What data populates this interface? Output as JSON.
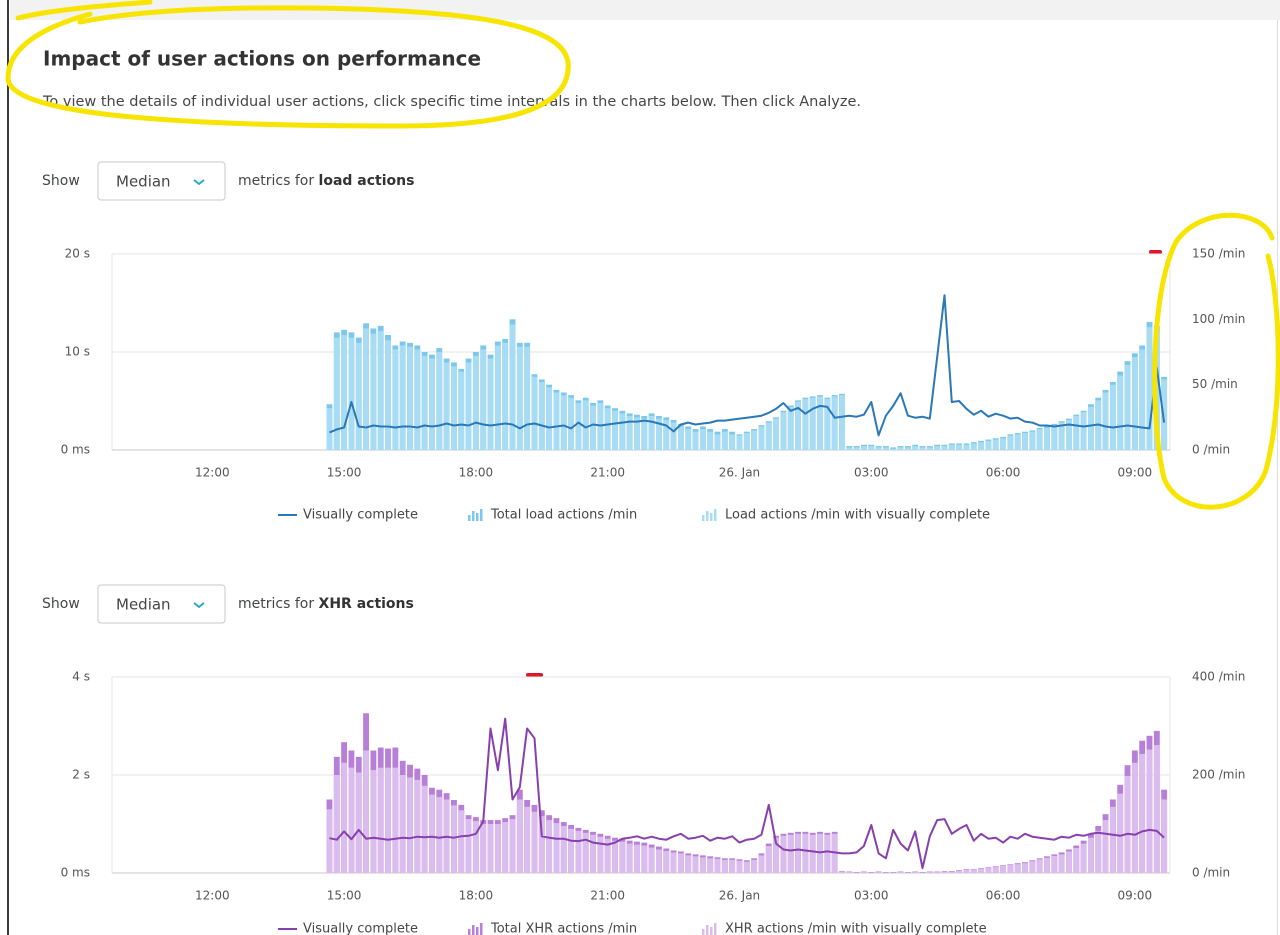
{
  "title": "Impact of user actions on performance",
  "description": "To view the details of individual user actions, click specific time intervals in the charts below. Then click Analyze.",
  "sections": [
    {
      "show_label": "Show",
      "selector": "Median",
      "metrics_label": "metrics for",
      "action_type": "load actions"
    },
    {
      "show_label": "Show",
      "selector": "Median",
      "metrics_label": "metrics for",
      "action_type": "XHR actions"
    }
  ],
  "chart_data": [
    {
      "type": "combo",
      "x": [
        880,
        890,
        900,
        910,
        920,
        930,
        940,
        950,
        960,
        970,
        980,
        990,
        1000,
        1010,
        1020,
        1030,
        1040,
        1050,
        1060,
        1070,
        1080,
        1090,
        1100,
        1110,
        1120,
        1130,
        1140,
        1150,
        1160,
        1170,
        1180,
        1190,
        1200,
        1210,
        1220,
        1230,
        1240,
        1250,
        1260,
        1270,
        1280,
        1290,
        1300,
        1310,
        1320,
        1330,
        1340,
        1350,
        1360,
        1370,
        1380,
        1390,
        1400,
        1410,
        1420,
        1430,
        1440,
        1450,
        1460,
        1470,
        1480,
        1490,
        1500,
        1510,
        1520,
        1530,
        1540,
        1550,
        1560,
        1570,
        1580,
        1590,
        1600,
        1610,
        1620,
        1630,
        1640,
        1650,
        1660,
        1670,
        1680,
        1690,
        1700,
        1710,
        1720,
        1730,
        1740,
        1750,
        1760,
        1770,
        1780,
        1790,
        1800,
        1810,
        1820,
        1830,
        1840,
        1850,
        1860,
        1870,
        1880,
        1890,
        1900,
        1910,
        1920,
        1930,
        1940,
        1950,
        1960,
        1970,
        1980,
        1990,
        2000,
        2010,
        2020
      ],
      "xlim": [
        583,
        2028
      ],
      "xticks": [
        {
          "value": 720,
          "label": "12:00"
        },
        {
          "value": 900,
          "label": "15:00"
        },
        {
          "value": 1080,
          "label": "18:00"
        },
        {
          "value": 1260,
          "label": "21:00"
        },
        {
          "value": 1440,
          "label": "26. Jan"
        },
        {
          "value": 1620,
          "label": "03:00"
        },
        {
          "value": 1800,
          "label": "06:00"
        },
        {
          "value": 1980,
          "label": "09:00"
        }
      ],
      "ylim": [
        0,
        20
      ],
      "yticks": [
        {
          "value": 0,
          "label": "0 ms"
        },
        {
          "value": 10,
          "label": "10 s"
        },
        {
          "value": 20,
          "label": "20 s"
        }
      ],
      "y2lim": [
        0,
        150
      ],
      "y2ticks": [
        {
          "value": 0,
          "label": "0 /min"
        },
        {
          "value": 50,
          "label": "50 /min"
        },
        {
          "value": 100,
          "label": "100 /min"
        },
        {
          "value": 150,
          "label": "150 /min"
        }
      ],
      "grid": true,
      "series": [
        {
          "name": "Total load actions /min",
          "kind": "bar",
          "axis": "y2",
          "color": "#7cc8ec",
          "values": [
            35,
            90,
            92,
            90,
            86,
            97,
            93,
            95,
            88,
            80,
            83,
            82,
            80,
            75,
            73,
            78,
            70,
            67,
            62,
            70,
            75,
            80,
            73,
            83,
            85,
            100,
            82,
            82,
            58,
            54,
            50,
            46,
            44,
            42,
            38,
            40,
            36,
            38,
            34,
            32,
            30,
            28,
            27,
            26,
            28,
            26,
            25,
            23,
            20,
            18,
            16,
            18,
            16,
            14,
            16,
            14,
            12,
            14,
            16,
            19,
            22,
            25,
            30,
            34,
            38,
            40,
            41,
            42,
            40,
            42,
            43,
            3,
            3,
            4,
            4,
            3,
            3,
            2,
            3,
            3,
            4,
            3,
            3,
            4,
            4,
            5,
            5,
            5,
            6,
            7,
            8,
            9,
            10,
            12,
            13,
            14,
            15,
            17,
            18,
            20,
            22,
            24,
            27,
            30,
            35,
            40,
            46,
            52,
            60,
            68,
            74,
            80,
            98,
            95,
            56
          ]
        },
        {
          "name": "Load actions /min with visually complete",
          "kind": "bar",
          "axis": "y2",
          "color": "#a8dcf4",
          "values": [
            32,
            86,
            88,
            86,
            82,
            93,
            89,
            91,
            84,
            77,
            80,
            79,
            77,
            72,
            70,
            75,
            67,
            64,
            60,
            67,
            72,
            77,
            70,
            80,
            82,
            96,
            79,
            79,
            56,
            52,
            48,
            44,
            42,
            40,
            36,
            38,
            34,
            36,
            32,
            30,
            28,
            26,
            25,
            24,
            26,
            24,
            23,
            21,
            18,
            16,
            14,
            16,
            14,
            12,
            14,
            12,
            11,
            13,
            15,
            18,
            21,
            24,
            29,
            33,
            37,
            39,
            40,
            41,
            39,
            41,
            42,
            2,
            2,
            3,
            3,
            2,
            2,
            1,
            2,
            2,
            3,
            2,
            2,
            3,
            3,
            4,
            4,
            4,
            5,
            6,
            7,
            8,
            9,
            11,
            12,
            13,
            14,
            16,
            17,
            19,
            21,
            23,
            26,
            29,
            33,
            38,
            44,
            50,
            57,
            65,
            71,
            77,
            94,
            91,
            54
          ]
        },
        {
          "name": "Visually complete",
          "kind": "line",
          "color": "#2a78b8",
          "values": [
            1.8,
            2.1,
            2.3,
            4.9,
            2.4,
            2.3,
            2.5,
            2.4,
            2.4,
            2.3,
            2.4,
            2.4,
            2.3,
            2.5,
            2.4,
            2.5,
            2.7,
            2.5,
            2.6,
            2.5,
            2.8,
            2.6,
            2.5,
            2.6,
            2.7,
            2.6,
            2.2,
            2.6,
            2.7,
            2.5,
            2.3,
            2.4,
            2.5,
            2.2,
            2.8,
            2.3,
            2.6,
            2.5,
            2.6,
            2.7,
            2.8,
            2.9,
            2.9,
            3.0,
            2.9,
            2.7,
            2.5,
            1.9,
            2.6,
            2.8,
            2.6,
            2.7,
            2.8,
            3.0,
            3.0,
            3.1,
            3.2,
            3.3,
            3.4,
            3.5,
            3.8,
            4.2,
            4.8,
            4.0,
            4.3,
            3.7,
            4.2,
            4.5,
            4.4,
            3.3,
            3.4,
            3.5,
            3.4,
            3.6,
            4.9,
            1.5,
            3.5,
            4.5,
            5.8,
            3.5,
            3.3,
            3.4,
            3.2,
            9.5,
            15.8,
            4.9,
            5.0,
            4.2,
            3.6,
            4.0,
            3.4,
            3.7,
            3.5,
            3.2,
            3.3,
            2.9,
            2.8,
            2.5,
            2.5,
            2.4,
            2.5,
            2.6,
            2.5,
            2.4,
            2.5,
            2.6,
            2.4,
            2.3,
            2.4,
            2.5,
            2.4,
            2.3,
            2.2,
            8.4,
            2.8
          ]
        }
      ]
    },
    {
      "type": "combo",
      "x": [
        880,
        890,
        900,
        910,
        920,
        930,
        940,
        950,
        960,
        970,
        980,
        990,
        1000,
        1010,
        1020,
        1030,
        1040,
        1050,
        1060,
        1070,
        1080,
        1090,
        1100,
        1110,
        1120,
        1130,
        1140,
        1150,
        1160,
        1170,
        1180,
        1190,
        1200,
        1210,
        1220,
        1230,
        1240,
        1250,
        1260,
        1270,
        1280,
        1290,
        1300,
        1310,
        1320,
        1330,
        1340,
        1350,
        1360,
        1370,
        1380,
        1390,
        1400,
        1410,
        1420,
        1430,
        1440,
        1450,
        1460,
        1470,
        1480,
        1490,
        1500,
        1510,
        1520,
        1530,
        1540,
        1550,
        1560,
        1570,
        1580,
        1590,
        1600,
        1610,
        1620,
        1630,
        1640,
        1650,
        1660,
        1670,
        1680,
        1690,
        1700,
        1710,
        1720,
        1730,
        1740,
        1750,
        1760,
        1770,
        1780,
        1790,
        1800,
        1810,
        1820,
        1830,
        1840,
        1850,
        1860,
        1870,
        1880,
        1890,
        1900,
        1910,
        1920,
        1930,
        1940,
        1950,
        1960,
        1970,
        1980,
        1990,
        2000,
        2010,
        2020
      ],
      "xlim": [
        583,
        2028
      ],
      "xticks": [
        {
          "value": 720,
          "label": "12:00"
        },
        {
          "value": 900,
          "label": "15:00"
        },
        {
          "value": 1080,
          "label": "18:00"
        },
        {
          "value": 1260,
          "label": "21:00"
        },
        {
          "value": 1440,
          "label": "26. Jan"
        },
        {
          "value": 1620,
          "label": "03:00"
        },
        {
          "value": 1800,
          "label": "06:00"
        },
        {
          "value": 1980,
          "label": "09:00"
        }
      ],
      "ylim": [
        0,
        4
      ],
      "yticks": [
        {
          "value": 0,
          "label": "0 ms"
        },
        {
          "value": 2,
          "label": "2 s"
        },
        {
          "value": 4,
          "label": "4 s"
        }
      ],
      "y2lim": [
        0,
        400
      ],
      "y2ticks": [
        {
          "value": 0,
          "label": "0 /min"
        },
        {
          "value": 200,
          "label": "200 /min"
        },
        {
          "value": 400,
          "label": "400 /min"
        }
      ],
      "grid": true,
      "series": [
        {
          "name": "Total XHR actions /min",
          "kind": "bar",
          "axis": "y2",
          "color": "#b87fd8",
          "values": [
            150,
            237,
            267,
            250,
            237,
            326,
            250,
            256,
            254,
            256,
            229,
            221,
            213,
            200,
            174,
            170,
            163,
            149,
            139,
            118,
            114,
            108,
            108,
            108,
            112,
            118,
            170,
            149,
            139,
            128,
            118,
            112,
            104,
            98,
            92,
            88,
            84,
            80,
            76,
            72,
            70,
            66,
            64,
            62,
            58,
            54,
            50,
            46,
            44,
            40,
            38,
            36,
            34,
            32,
            30,
            30,
            28,
            26,
            30,
            40,
            60,
            76,
            80,
            82,
            84,
            84,
            82,
            84,
            82,
            84,
            4,
            3,
            2,
            3,
            2,
            3,
            2,
            2,
            3,
            2,
            3,
            2,
            3,
            3,
            4,
            4,
            6,
            8,
            8,
            10,
            12,
            14,
            16,
            18,
            20,
            22,
            26,
            30,
            34,
            38,
            42,
            48,
            56,
            66,
            80,
            96,
            120,
            150,
            180,
            220,
            250,
            270,
            280,
            290,
            170
          ]
        },
        {
          "name": "XHR actions /min with visually complete",
          "kind": "bar",
          "axis": "y2",
          "color": "#dbbcee",
          "values": [
            130,
            200,
            225,
            215,
            205,
            250,
            210,
            215,
            215,
            215,
            200,
            195,
            190,
            178,
            160,
            155,
            150,
            138,
            128,
            110,
            106,
            100,
            100,
            100,
            104,
            110,
            150,
            135,
            125,
            116,
            108,
            102,
            96,
            90,
            86,
            82,
            78,
            74,
            70,
            66,
            64,
            60,
            58,
            56,
            52,
            48,
            45,
            42,
            40,
            36,
            34,
            32,
            30,
            29,
            27,
            27,
            25,
            23,
            27,
            36,
            55,
            72,
            76,
            78,
            80,
            80,
            78,
            80,
            78,
            80,
            3,
            2,
            1,
            2,
            1,
            2,
            1,
            1,
            2,
            1,
            2,
            1,
            2,
            2,
            3,
            3,
            5,
            7,
            7,
            9,
            11,
            13,
            15,
            17,
            18,
            20,
            24,
            28,
            31,
            35,
            38,
            44,
            51,
            60,
            72,
            86,
            108,
            135,
            162,
            198,
            225,
            243,
            252,
            261,
            150
          ]
        },
        {
          "name": "Visually complete",
          "kind": "line",
          "color": "#8740ad",
          "values": [
            0.71,
            0.68,
            0.85,
            0.69,
            0.88,
            0.7,
            0.72,
            0.7,
            0.68,
            0.7,
            0.72,
            0.71,
            0.74,
            0.73,
            0.74,
            0.72,
            0.74,
            0.72,
            0.75,
            0.76,
            0.8,
            1.05,
            2.95,
            2.1,
            3.15,
            1.5,
            1.75,
            2.95,
            2.75,
            0.75,
            0.72,
            0.7,
            0.7,
            0.66,
            0.65,
            0.68,
            0.62,
            0.6,
            0.58,
            0.62,
            0.7,
            0.72,
            0.75,
            0.7,
            0.74,
            0.7,
            0.68,
            0.75,
            0.8,
            0.7,
            0.72,
            0.76,
            0.66,
            0.72,
            0.7,
            0.75,
            0.62,
            0.68,
            0.7,
            0.78,
            1.39,
            0.6,
            0.48,
            0.46,
            0.48,
            0.46,
            0.44,
            0.42,
            0.44,
            0.42,
            0.4,
            0.4,
            0.42,
            0.55,
            0.98,
            0.4,
            0.3,
            0.88,
            0.6,
            0.46,
            0.85,
            0.1,
            0.75,
            1.08,
            1.1,
            0.8,
            0.9,
            0.98,
            0.66,
            0.8,
            0.7,
            0.72,
            0.62,
            0.74,
            0.7,
            0.8,
            0.74,
            0.72,
            0.7,
            0.68,
            0.74,
            0.72,
            0.78,
            0.76,
            0.8,
            0.82,
            0.8,
            0.78,
            0.76,
            0.8,
            0.78,
            0.85,
            0.88,
            0.86,
            0.72
          ]
        }
      ]
    }
  ]
}
